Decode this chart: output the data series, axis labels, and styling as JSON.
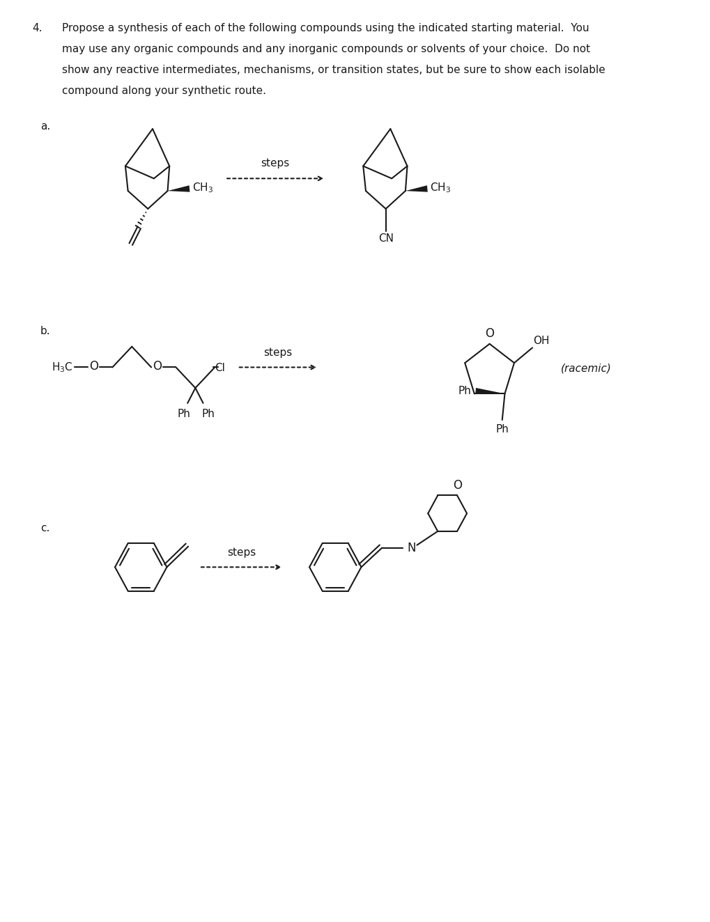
{
  "bg_color": "#ffffff",
  "text_color": "#1a1a1a",
  "title_number": "4.",
  "label_a": "a.",
  "label_b": "b.",
  "label_c": "c.",
  "steps_text": "steps",
  "racemic_text": "(racemic)",
  "header_lines": [
    "Propose a synthesis of each of the following compounds using the indicated starting material.  You",
    "may use any organic compounds and any inorganic compounds or solvents of your choice.  Do not",
    "show any reactive intermediates, mechanisms, or transition states, but be sure to show each isolable",
    "compound along your synthetic route."
  ],
  "fs_main": 11.0,
  "fs_label": 11.0,
  "lw": 1.5
}
